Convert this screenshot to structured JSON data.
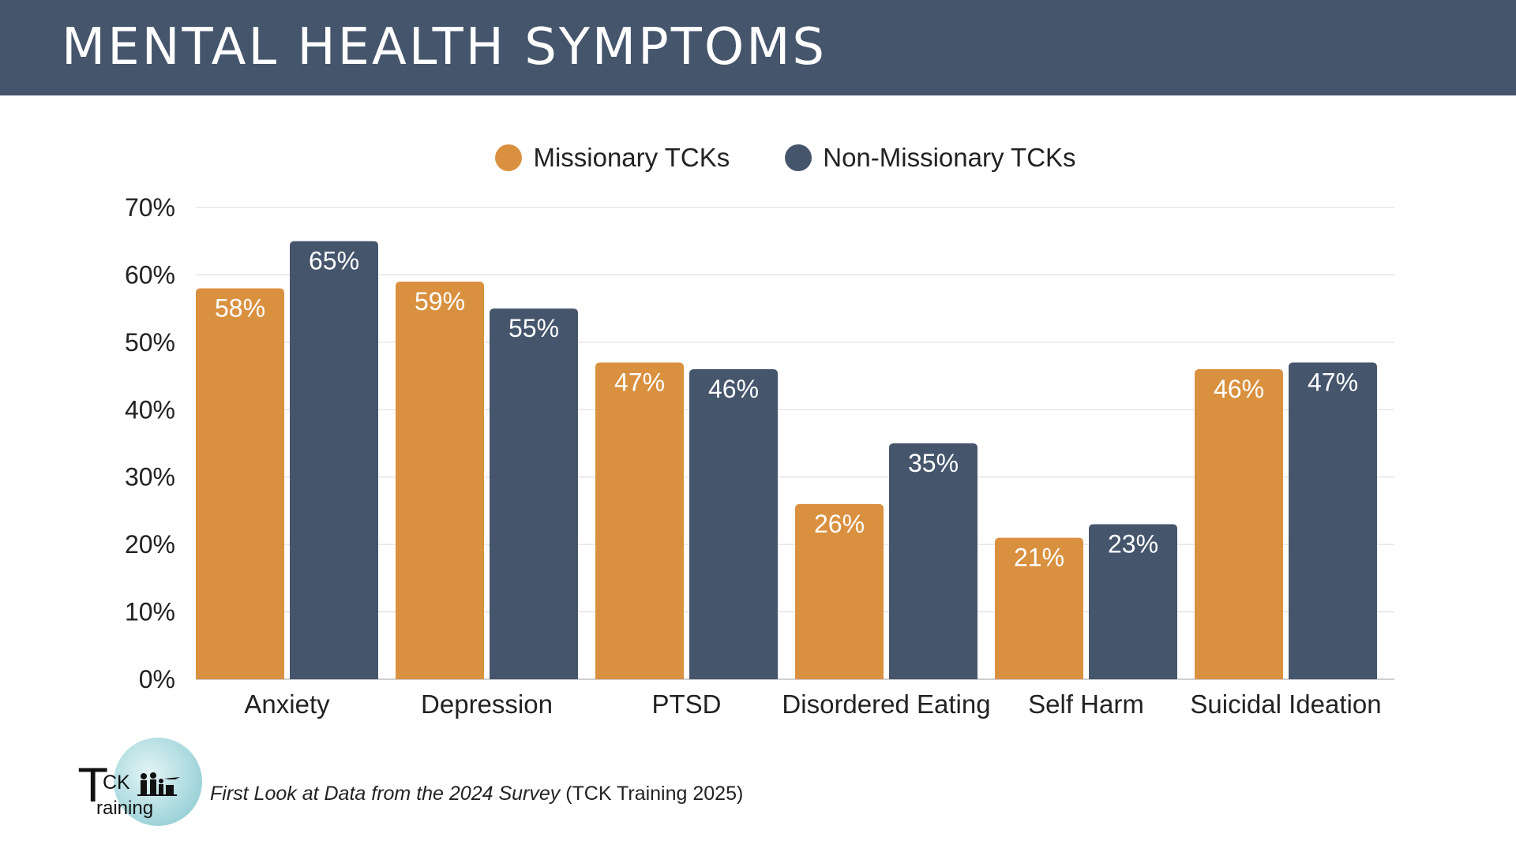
{
  "header": {
    "title": "MENTAL HEALTH SYMPTOMS"
  },
  "colors": {
    "header_bg": "#45556c",
    "missionary": "#d99140",
    "non_missionary": "#45556c"
  },
  "chart_data": {
    "type": "bar",
    "title": "",
    "xlabel": "",
    "ylabel": "",
    "categories": [
      "Anxiety",
      "Depression",
      "PTSD",
      "Disordered Eating",
      "Self Harm",
      "Suicidal Ideation"
    ],
    "series": [
      {
        "name": "Missionary TCKs",
        "values": [
          58,
          59,
          47,
          26,
          21,
          46
        ],
        "color": "#d99140"
      },
      {
        "name": "Non-Missionary TCKs",
        "values": [
          65,
          55,
          46,
          35,
          23,
          47
        ],
        "color": "#45556c"
      }
    ],
    "ylim": [
      0,
      70
    ],
    "yticks": [
      "0%",
      "10%",
      "20%",
      "30%",
      "40%",
      "50%",
      "60%",
      "70%"
    ],
    "value_suffix": "%",
    "grid": true,
    "legend": "top-center"
  },
  "footer": {
    "logo_text_t": "T",
    "logo_text_ck": "CK",
    "logo_text_raining": "raining",
    "source_italic": "First Look at Data from the 2024 Survey",
    "source_plain": " (TCK Training 2025)"
  }
}
